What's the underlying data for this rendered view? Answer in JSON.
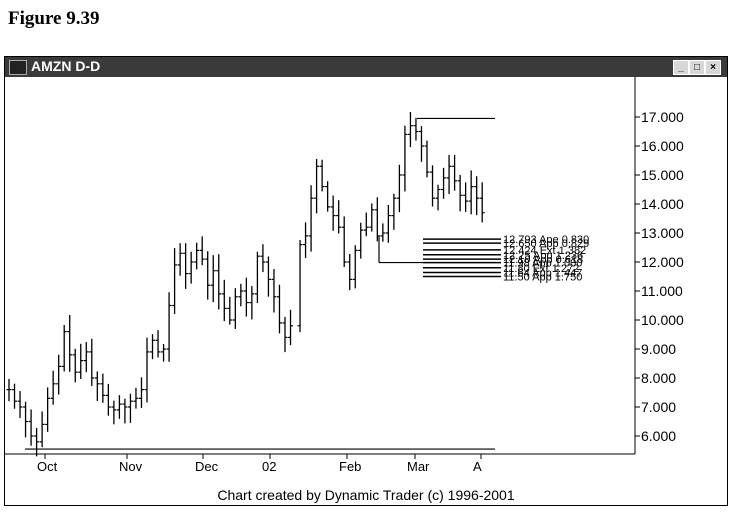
{
  "figure_title": "Figure 9.39",
  "window": {
    "title": "AMZN D-D",
    "buttons": [
      "_",
      "□",
      "×"
    ]
  },
  "footer": "Chart created by Dynamic Trader (c) 1996-2001",
  "chart_data": {
    "type": "bar",
    "title": "AMZN D-D",
    "subtitle": "",
    "xlabel": "",
    "ylabel": "",
    "ylim": [
      5.5,
      17.3
    ],
    "yticks": [
      "17.000",
      "16.000",
      "15.000",
      "14.000",
      "13.000",
      "12.000",
      "11.000",
      "10.000",
      "9.000",
      "8.000",
      "7.000",
      "6.000"
    ],
    "xticks": [
      "Oct",
      "Nov",
      "Dec",
      "02",
      "Feb",
      "Mar",
      "A"
    ],
    "grid": false,
    "legend": "none",
    "bar_style": "OHLC",
    "approx_closes": [
      7.6,
      7.2,
      7.0,
      6.5,
      6.0,
      5.8,
      6.4,
      7.3,
      7.8,
      8.4,
      9.6,
      8.8,
      8.2,
      8.6,
      8.9,
      8.0,
      7.8,
      7.4,
      7.0,
      6.9,
      7.1,
      7.0,
      7.2,
      7.3,
      7.6,
      8.9,
      9.3,
      8.9,
      9.0,
      10.5,
      11.9,
      12.3,
      11.6,
      12.0,
      12.4,
      12.1,
      11.2,
      11.7,
      10.9,
      10.4,
      10.0,
      10.8,
      11.0,
      10.6,
      10.9,
      12.2,
      12.0,
      11.4,
      10.8,
      9.9,
      9.4,
      9.8,
      12.6,
      12.9,
      14.2,
      15.3,
      14.6,
      13.9,
      13.6,
      13.2,
      12.0,
      11.4,
      12.4,
      13.1,
      13.2,
      13.8,
      12.9,
      13.0,
      13.6,
      14.2,
      15.0,
      16.4,
      16.7,
      16.5,
      16.0,
      15.1,
      14.2,
      14.5,
      14.9,
      15.3,
      14.8,
      14.3,
      14.1,
      14.6,
      14.2,
      13.7
    ],
    "price_high": 16.95,
    "price_low": 5.55,
    "resistance_levels": [
      {
        "price": 12.79,
        "label": "12.793 Ape 0.830"
      },
      {
        "price": 12.65,
        "label": "12.650 App 0.829"
      },
      {
        "price": 12.42,
        "label": "12.424 Ext 1.382"
      },
      {
        "price": 12.25,
        "label": "12.25 App 1.236"
      },
      {
        "price": 12.1,
        "label": "12.10 App 0.618"
      },
      {
        "price": 11.98,
        "label": "11.98 App 1.000"
      },
      {
        "price": 11.8,
        "label": "11.80 Ext 1.272"
      },
      {
        "price": 11.64,
        "label": "11.64 App 1.447"
      },
      {
        "price": 11.5,
        "label": "11.50 App 1.750"
      }
    ],
    "reference_lines": [
      {
        "name": "high",
        "price": 16.95
      },
      {
        "name": "low",
        "price": 5.55
      }
    ]
  }
}
